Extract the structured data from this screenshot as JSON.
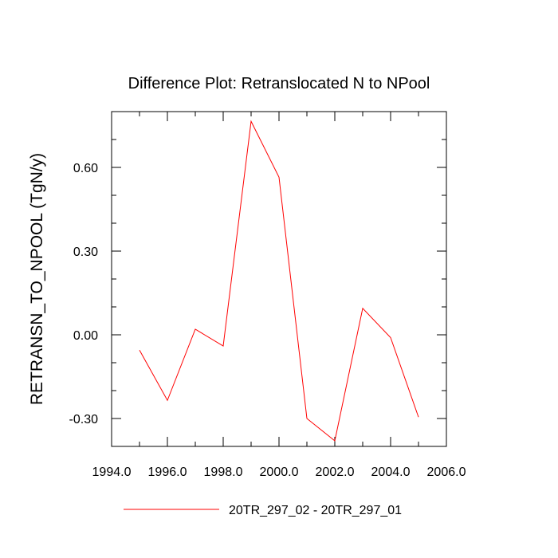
{
  "chart_data": {
    "type": "line",
    "title": "Difference Plot: Retranslocated N to NPool",
    "xlabel": "",
    "ylabel": "RETRANSN_TO_NPOOL  (TgN/y)",
    "xlim": [
      1994,
      2006
    ],
    "ylim": [
      -0.4,
      0.8
    ],
    "x_ticks": [
      1994,
      1996,
      1998,
      2000,
      2002,
      2004,
      2006
    ],
    "x_tick_labels": [
      "1994.0",
      "1996.0",
      "1998.0",
      "2000.0",
      "2002.0",
      "2004.0",
      "2006.0"
    ],
    "y_ticks": [
      -0.3,
      0.0,
      0.3,
      0.6
    ],
    "y_tick_labels": [
      "-0.30",
      "0.00",
      "0.30",
      "0.60"
    ],
    "grid": false,
    "legend_position": "bottom-center",
    "series": [
      {
        "name": "20TR_297_02 - 20TR_297_01",
        "color": "#ff0000",
        "x": [
          1995,
          1996,
          1997,
          1998,
          1999,
          2000,
          2001,
          2002,
          2003,
          2004,
          2005
        ],
        "y": [
          -0.055,
          -0.235,
          0.02,
          -0.04,
          0.765,
          0.565,
          -0.3,
          -0.38,
          0.095,
          -0.01,
          -0.295
        ]
      }
    ]
  }
}
